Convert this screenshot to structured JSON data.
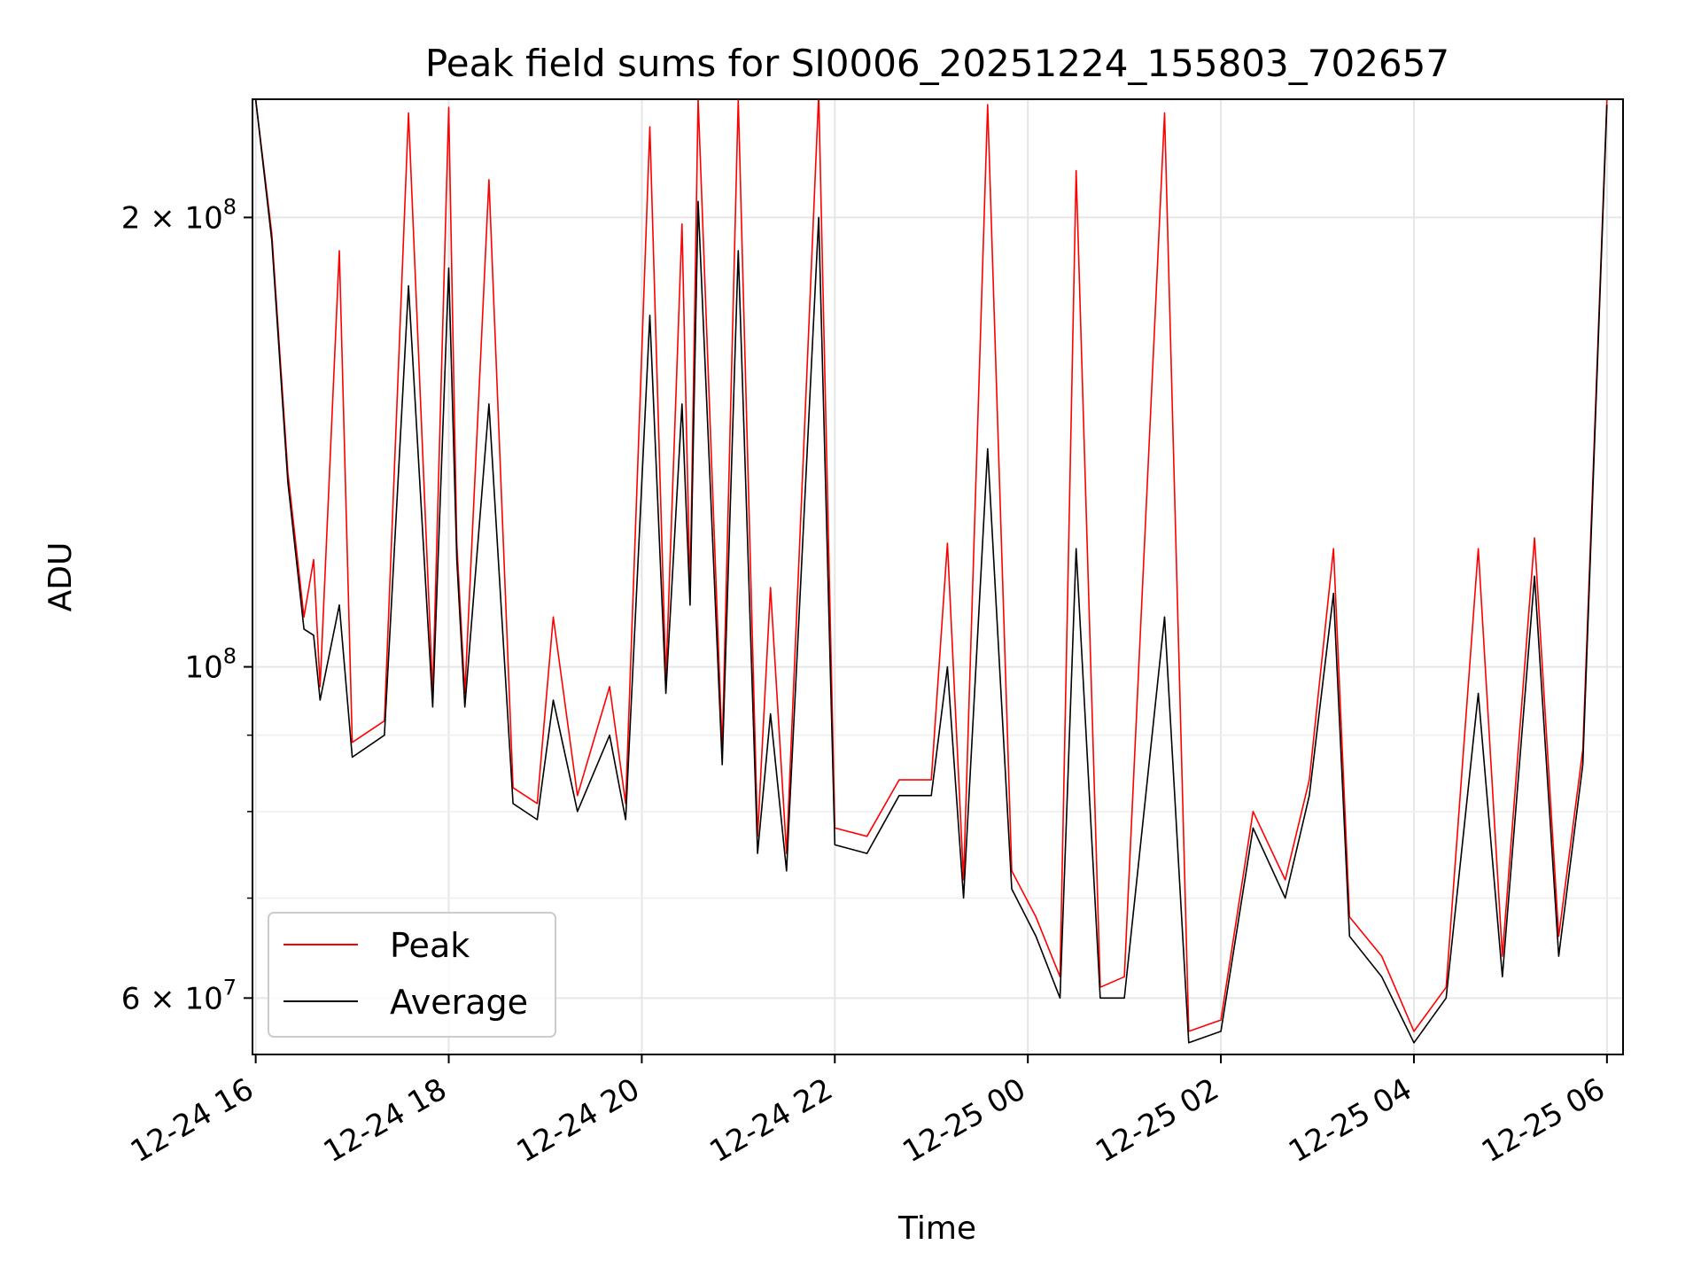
{
  "chart_data": {
    "type": "line",
    "title": "Peak field sums for SI0006_20251224_155803_702657",
    "xlabel": "Time",
    "ylabel": "ADU",
    "y_scale": "log",
    "ylim": [
      55000000,
      240000000
    ],
    "xlim": [
      "2025-12-24 15:58",
      "2025-12-25 06:10"
    ],
    "grid": true,
    "legend_position": "lower-left",
    "x_ticks": [
      {
        "t": "2025-12-24 16:00",
        "label": "12-24 16"
      },
      {
        "t": "2025-12-24 18:00",
        "label": "12-24 18"
      },
      {
        "t": "2025-12-24 20:00",
        "label": "12-24 20"
      },
      {
        "t": "2025-12-24 22:00",
        "label": "12-24 22"
      },
      {
        "t": "2025-12-25 00:00",
        "label": "12-25 00"
      },
      {
        "t": "2025-12-25 02:00",
        "label": "12-25 02"
      },
      {
        "t": "2025-12-25 04:00",
        "label": "12-25 04"
      },
      {
        "t": "2025-12-25 06:00",
        "label": "12-25 06"
      }
    ],
    "y_major_ticks": [
      {
        "value": 60000000,
        "mantissa": "6",
        "exponent": "7"
      },
      {
        "value": 100000000,
        "mantissa": "",
        "exponent": "8"
      },
      {
        "value": 200000000,
        "mantissa": "2",
        "exponent": "8"
      }
    ],
    "y_minor_ticks": [
      70000000,
      80000000,
      90000000
    ],
    "series": [
      {
        "name": "Peak",
        "color": "#ff0000",
        "points": [
          [
            "2025-12-24 16:00",
            240000000
          ],
          [
            "2025-12-24 16:10",
            195000000
          ],
          [
            "2025-12-24 16:20",
            135000000
          ],
          [
            "2025-12-24 16:30",
            108000000
          ],
          [
            "2025-12-24 16:36",
            118000000
          ],
          [
            "2025-12-24 16:40",
            97000000
          ],
          [
            "2025-12-24 16:52",
            190000000
          ],
          [
            "2025-12-24 17:00",
            89000000
          ],
          [
            "2025-12-24 17:20",
            92000000
          ],
          [
            "2025-12-24 17:35",
            235000000
          ],
          [
            "2025-12-24 17:50",
            96000000
          ],
          [
            "2025-12-24 18:00",
            237000000
          ],
          [
            "2025-12-24 18:05",
            121000000
          ],
          [
            "2025-12-24 18:10",
            96000000
          ],
          [
            "2025-12-24 18:25",
            212000000
          ],
          [
            "2025-12-24 18:40",
            83000000
          ],
          [
            "2025-12-24 18:55",
            81000000
          ],
          [
            "2025-12-24 19:05",
            108000000
          ],
          [
            "2025-12-24 19:20",
            82000000
          ],
          [
            "2025-12-24 19:40",
            97000000
          ],
          [
            "2025-12-24 19:50",
            81000000
          ],
          [
            "2025-12-24 20:05",
            230000000
          ],
          [
            "2025-12-24 20:15",
            98000000
          ],
          [
            "2025-12-24 20:25",
            198000000
          ],
          [
            "2025-12-24 20:30",
            112000000
          ],
          [
            "2025-12-24 20:35",
            240000000
          ],
          [
            "2025-12-24 20:50",
            88000000
          ],
          [
            "2025-12-24 21:00",
            240000000
          ],
          [
            "2025-12-24 21:12",
            77000000
          ],
          [
            "2025-12-24 21:20",
            113000000
          ],
          [
            "2025-12-24 21:30",
            75000000
          ],
          [
            "2025-12-24 21:50",
            242000000
          ],
          [
            "2025-12-24 22:00",
            78000000
          ],
          [
            "2025-12-24 22:20",
            77000000
          ],
          [
            "2025-12-24 22:40",
            84000000
          ],
          [
            "2025-12-24 23:00",
            84000000
          ],
          [
            "2025-12-24 23:10",
            121000000
          ],
          [
            "2025-12-24 23:20",
            72000000
          ],
          [
            "2025-12-24 23:35",
            238000000
          ],
          [
            "2025-12-24 23:50",
            73000000
          ],
          [
            "2025-12-25 00:05",
            68000000
          ],
          [
            "2025-12-25 00:20",
            62000000
          ],
          [
            "2025-12-25 00:30",
            215000000
          ],
          [
            "2025-12-25 00:45",
            61000000
          ],
          [
            "2025-12-25 01:00",
            62000000
          ],
          [
            "2025-12-25 01:25",
            235000000
          ],
          [
            "2025-12-25 01:40",
            57000000
          ],
          [
            "2025-12-25 02:00",
            58000000
          ],
          [
            "2025-12-25 02:20",
            80000000
          ],
          [
            "2025-12-25 02:40",
            72000000
          ],
          [
            "2025-12-25 02:55",
            84000000
          ],
          [
            "2025-12-25 03:10",
            120000000
          ],
          [
            "2025-12-25 03:20",
            68000000
          ],
          [
            "2025-12-25 03:40",
            64000000
          ],
          [
            "2025-12-25 04:00",
            57000000
          ],
          [
            "2025-12-25 04:20",
            61000000
          ],
          [
            "2025-12-25 04:40",
            120000000
          ],
          [
            "2025-12-25 04:55",
            64000000
          ],
          [
            "2025-12-25 05:15",
            122000000
          ],
          [
            "2025-12-25 05:30",
            66000000
          ],
          [
            "2025-12-25 05:45",
            88000000
          ],
          [
            "2025-12-25 06:00",
            240000000
          ]
        ]
      },
      {
        "name": "Average",
        "color": "#000000",
        "points": [
          [
            "2025-12-24 16:00",
            240000000
          ],
          [
            "2025-12-24 16:10",
            193000000
          ],
          [
            "2025-12-24 16:20",
            133000000
          ],
          [
            "2025-12-24 16:30",
            106000000
          ],
          [
            "2025-12-24 16:36",
            105000000
          ],
          [
            "2025-12-24 16:40",
            95000000
          ],
          [
            "2025-12-24 16:52",
            110000000
          ],
          [
            "2025-12-24 17:00",
            87000000
          ],
          [
            "2025-12-24 17:20",
            90000000
          ],
          [
            "2025-12-24 17:35",
            180000000
          ],
          [
            "2025-12-24 17:50",
            94000000
          ],
          [
            "2025-12-24 18:00",
            185000000
          ],
          [
            "2025-12-24 18:05",
            118000000
          ],
          [
            "2025-12-24 18:10",
            94000000
          ],
          [
            "2025-12-24 18:25",
            150000000
          ],
          [
            "2025-12-24 18:40",
            81000000
          ],
          [
            "2025-12-24 18:55",
            79000000
          ],
          [
            "2025-12-24 19:05",
            95000000
          ],
          [
            "2025-12-24 19:20",
            80000000
          ],
          [
            "2025-12-24 19:40",
            90000000
          ],
          [
            "2025-12-24 19:50",
            79000000
          ],
          [
            "2025-12-24 20:05",
            172000000
          ],
          [
            "2025-12-24 20:15",
            96000000
          ],
          [
            "2025-12-24 20:25",
            150000000
          ],
          [
            "2025-12-24 20:30",
            110000000
          ],
          [
            "2025-12-24 20:35",
            205000000
          ],
          [
            "2025-12-24 20:50",
            86000000
          ],
          [
            "2025-12-24 21:00",
            190000000
          ],
          [
            "2025-12-24 21:12",
            75000000
          ],
          [
            "2025-12-24 21:20",
            93000000
          ],
          [
            "2025-12-24 21:30",
            73000000
          ],
          [
            "2025-12-24 21:50",
            200000000
          ],
          [
            "2025-12-24 22:00",
            76000000
          ],
          [
            "2025-12-24 22:20",
            75000000
          ],
          [
            "2025-12-24 22:40",
            82000000
          ],
          [
            "2025-12-24 23:00",
            82000000
          ],
          [
            "2025-12-24 23:10",
            100000000
          ],
          [
            "2025-12-24 23:20",
            70000000
          ],
          [
            "2025-12-24 23:35",
            140000000
          ],
          [
            "2025-12-24 23:50",
            71000000
          ],
          [
            "2025-12-25 00:05",
            66000000
          ],
          [
            "2025-12-25 00:20",
            60000000
          ],
          [
            "2025-12-25 00:30",
            120000000
          ],
          [
            "2025-12-25 00:45",
            60000000
          ],
          [
            "2025-12-25 01:00",
            60000000
          ],
          [
            "2025-12-25 01:25",
            108000000
          ],
          [
            "2025-12-25 01:40",
            56000000
          ],
          [
            "2025-12-25 02:00",
            57000000
          ],
          [
            "2025-12-25 02:20",
            78000000
          ],
          [
            "2025-12-25 02:40",
            70000000
          ],
          [
            "2025-12-25 02:55",
            82000000
          ],
          [
            "2025-12-25 03:10",
            112000000
          ],
          [
            "2025-12-25 03:20",
            66000000
          ],
          [
            "2025-12-25 03:40",
            62000000
          ],
          [
            "2025-12-25 04:00",
            56000000
          ],
          [
            "2025-12-25 04:20",
            60000000
          ],
          [
            "2025-12-25 04:40",
            96000000
          ],
          [
            "2025-12-25 04:55",
            62000000
          ],
          [
            "2025-12-25 05:15",
            115000000
          ],
          [
            "2025-12-25 05:30",
            64000000
          ],
          [
            "2025-12-25 05:45",
            86000000
          ],
          [
            "2025-12-25 06:00",
            238000000
          ]
        ]
      }
    ]
  }
}
